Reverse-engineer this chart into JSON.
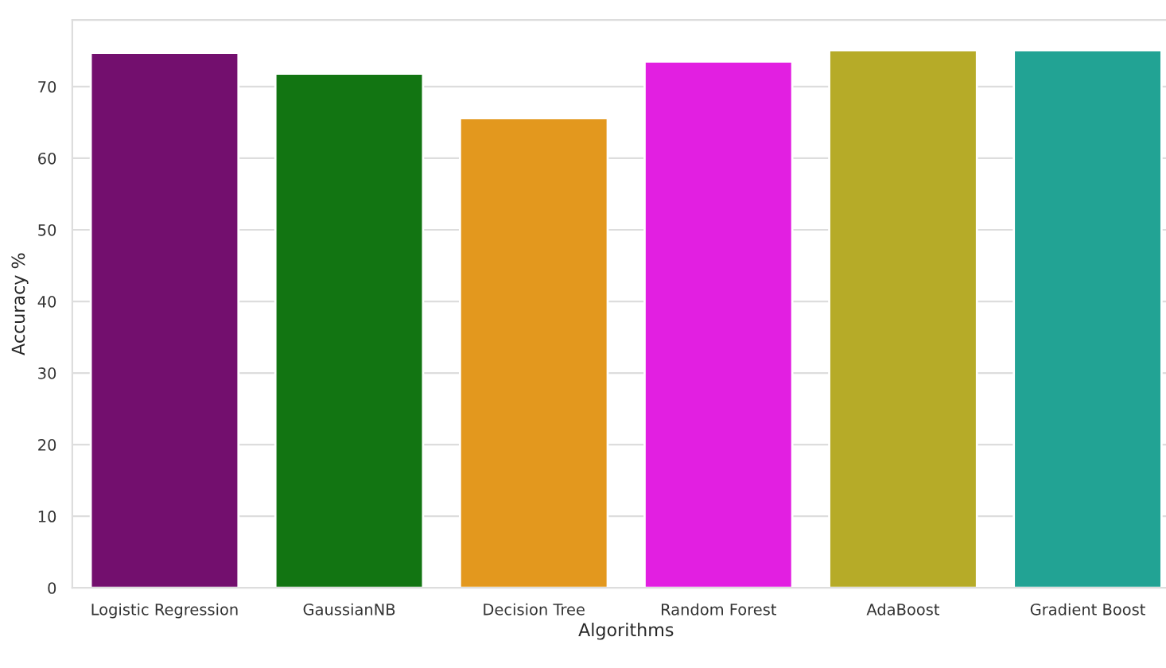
{
  "chart_data": {
    "type": "bar",
    "xlabel": "Algorithms",
    "ylabel": "Accuracy %",
    "categories": [
      "Logistic Regression",
      "GaussianNB",
      "Decision Tree",
      "Random Forest",
      "AdaBoost",
      "Gradient Boost"
    ],
    "values": [
      74.7,
      71.8,
      65.6,
      73.5,
      75.1,
      75.1
    ],
    "colors": [
      "#730f6e",
      "#127512",
      "#e3981e",
      "#e21fe1",
      "#b6ab28",
      "#22a394"
    ],
    "ylim": [
      0,
      79.3
    ],
    "yticks": [
      0,
      10,
      20,
      30,
      40,
      50,
      60,
      70
    ],
    "grid": "y",
    "legend": false
  }
}
